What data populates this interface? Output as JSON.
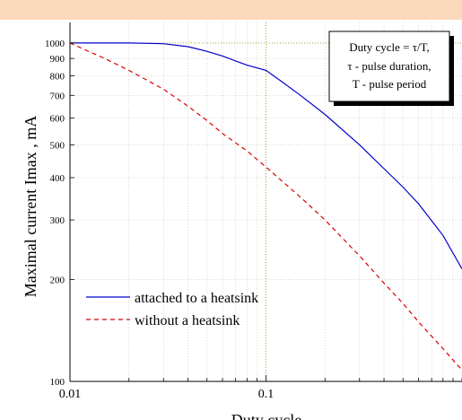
{
  "chart_data": {
    "type": "line",
    "xlabel": "Duty cycle",
    "ylabel": "Maximal current  Imax , mA",
    "x_scale": "log",
    "y_scale": "log",
    "xlim": [
      0.01,
      1.0
    ],
    "ylim": [
      100,
      1150
    ],
    "x_ticks": [
      {
        "value": 0.01,
        "label": "0.01"
      },
      {
        "value": 0.1,
        "label": "0.1"
      }
    ],
    "y_ticks": [
      {
        "value": 100,
        "label": "100"
      },
      {
        "value": 200,
        "label": "200"
      },
      {
        "value": 300,
        "label": "300"
      },
      {
        "value": 400,
        "label": "400"
      },
      {
        "value": 500,
        "label": "500"
      },
      {
        "value": 600,
        "label": "600"
      },
      {
        "value": 700,
        "label": "700"
      },
      {
        "value": 800,
        "label": "800"
      },
      {
        "value": 900,
        "label": "900"
      },
      {
        "value": 1000,
        "label": "1000"
      }
    ],
    "grid": true,
    "reference_lines": {
      "x": 0.1,
      "y": 1000
    },
    "series": [
      {
        "name": "attached to a heatsink",
        "color": "#0000cc",
        "style": "solid",
        "x": [
          0.01,
          0.02,
          0.03,
          0.04,
          0.05,
          0.06,
          0.07,
          0.08,
          0.1,
          0.12,
          0.15,
          0.2,
          0.3,
          0.4,
          0.5,
          0.6,
          0.8,
          1.0
        ],
        "y": [
          1000,
          1000,
          995,
          975,
          945,
          915,
          885,
          860,
          830,
          770,
          700,
          615,
          500,
          425,
          375,
          335,
          270,
          215
        ]
      },
      {
        "name": "without a heatsink",
        "color": "#dd0000",
        "style": "dashed",
        "x": [
          0.01,
          0.015,
          0.02,
          0.03,
          0.04,
          0.05,
          0.06,
          0.08,
          0.1,
          0.15,
          0.2,
          0.3,
          0.4,
          0.5,
          0.6,
          0.8,
          1.0
        ],
        "y": [
          1000,
          900,
          830,
          730,
          650,
          590,
          540,
          480,
          430,
          350,
          300,
          235,
          195,
          170,
          150,
          125,
          108
        ]
      }
    ],
    "legend_placement": "bottom-left",
    "annotation": [
      "Duty cycle = τ/T,",
      "τ - pulse duration,",
      "T - pulse period"
    ]
  }
}
